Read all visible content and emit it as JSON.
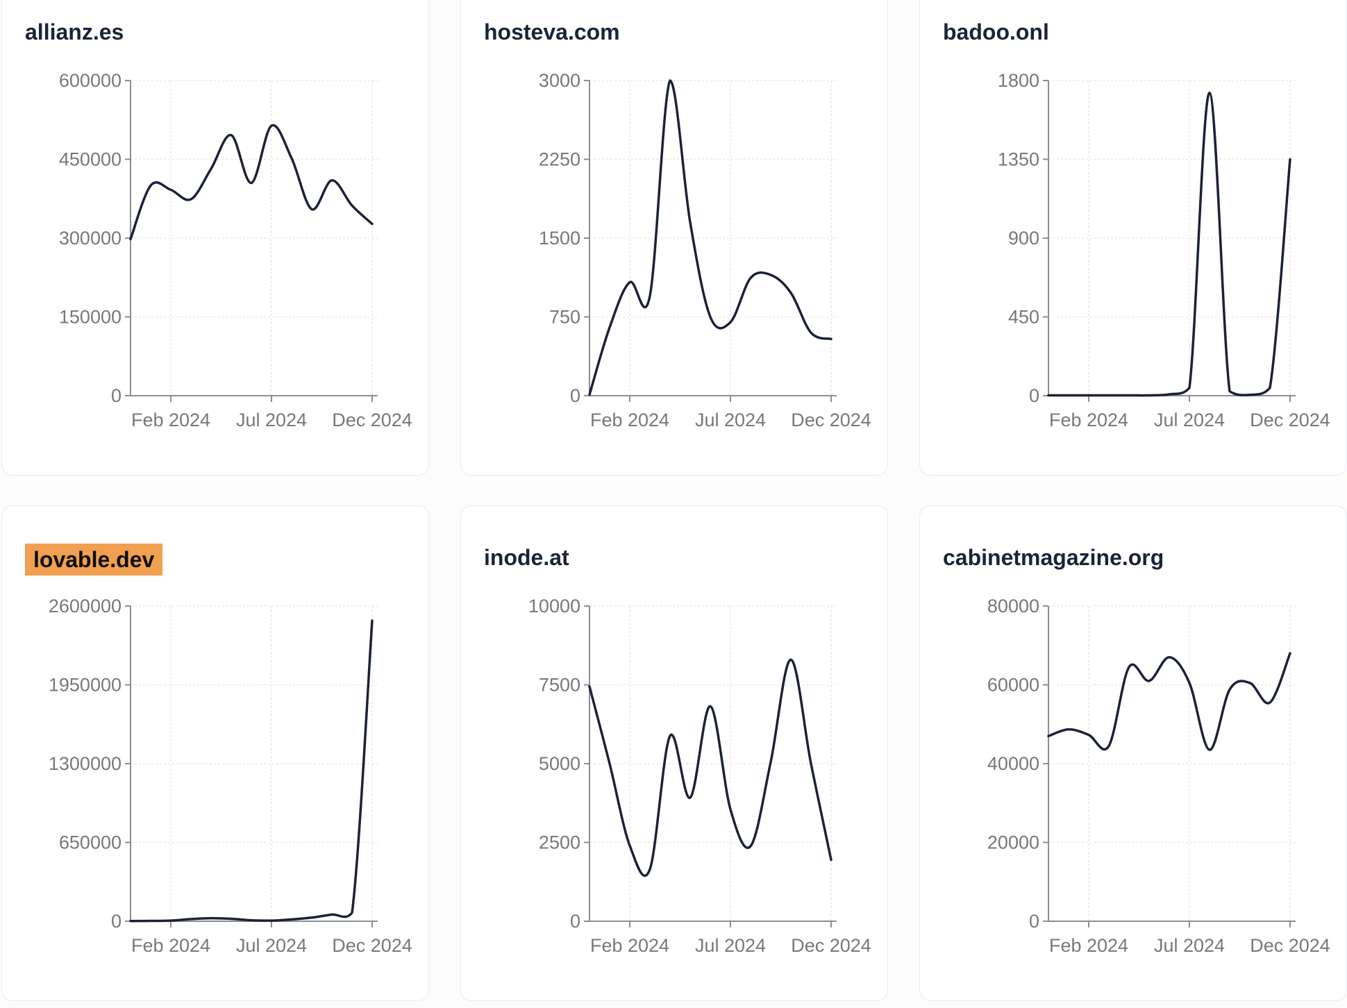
{
  "theme": {
    "page_bg": "#fcfcfd",
    "card_bg": "#ffffff",
    "card_border": "#e6ebf2",
    "line_color": "#1b2138",
    "title_color": "#1a2339",
    "tick_text_color": "#75787d",
    "axis_color": "#8a8e93",
    "grid_color": "#e8e8ea",
    "highlight_bg": "#f0a050",
    "highlight_text": "#0c0c0c"
  },
  "chart_data": [
    {
      "type": "line",
      "title": "allianz.es",
      "title_highlighted": false,
      "x": [
        "2023-12",
        "2024-01",
        "2024-02",
        "2024-03",
        "2024-04",
        "2024-05",
        "2024-06",
        "2024-07",
        "2024-08",
        "2024-09",
        "2024-10",
        "2024-11",
        "2024-12"
      ],
      "x_tick_labels": [
        "Feb 2024",
        "Jul 2024",
        "Dec 2024"
      ],
      "x_tick_indices": [
        2,
        7,
        12
      ],
      "y_ticks": [
        0,
        150000,
        300000,
        450000,
        600000
      ],
      "ylim": [
        0,
        600000
      ],
      "grid": true,
      "legend": "none",
      "values": [
        298000,
        400000,
        392000,
        374000,
        432000,
        496000,
        405000,
        514000,
        452000,
        355000,
        410000,
        362000,
        327000
      ]
    },
    {
      "type": "line",
      "title": "hosteva.com",
      "title_highlighted": false,
      "x": [
        "2023-12",
        "2024-01",
        "2024-02",
        "2024-03",
        "2024-04",
        "2024-05",
        "2024-06",
        "2024-07",
        "2024-08",
        "2024-09",
        "2024-10",
        "2024-11",
        "2024-12"
      ],
      "x_tick_labels": [
        "Feb 2024",
        "Jul 2024",
        "Dec 2024"
      ],
      "x_tick_indices": [
        2,
        7,
        12
      ],
      "y_ticks": [
        0,
        750,
        1500,
        2250,
        3000
      ],
      "ylim": [
        0,
        3000
      ],
      "grid": true,
      "legend": "none",
      "values": [
        10,
        650,
        1080,
        950,
        3000,
        1650,
        750,
        700,
        1120,
        1150,
        980,
        600,
        540
      ]
    },
    {
      "type": "line",
      "title": "badoo.onl",
      "title_highlighted": false,
      "x": [
        "2023-12",
        "2024-01",
        "2024-02",
        "2024-03",
        "2024-04",
        "2024-05",
        "2024-06",
        "2024-07",
        "2024-08",
        "2024-09",
        "2024-10",
        "2024-11",
        "2024-12"
      ],
      "x_tick_labels": [
        "Feb 2024",
        "Jul 2024",
        "Dec 2024"
      ],
      "x_tick_indices": [
        2,
        7,
        12
      ],
      "y_ticks": [
        0,
        450,
        900,
        1350,
        1800
      ],
      "ylim": [
        0,
        1800
      ],
      "grid": true,
      "legend": "none",
      "values": [
        2,
        2,
        2,
        2,
        2,
        2,
        8,
        45,
        1730,
        25,
        5,
        45,
        1350
      ]
    },
    {
      "type": "line",
      "title": "lovable.dev",
      "title_highlighted": true,
      "x": [
        "2023-12",
        "2024-01",
        "2024-02",
        "2024-03",
        "2024-04",
        "2024-05",
        "2024-06",
        "2024-07",
        "2024-08",
        "2024-09",
        "2024-10",
        "2024-11",
        "2024-12"
      ],
      "x_tick_labels": [
        "Feb 2024",
        "Jul 2024",
        "Dec 2024"
      ],
      "x_tick_indices": [
        2,
        7,
        12
      ],
      "y_ticks": [
        0,
        650000,
        1300000,
        1950000,
        2600000
      ],
      "ylim": [
        0,
        2600000
      ],
      "grid": true,
      "legend": "none",
      "values": [
        2000,
        3000,
        5000,
        18000,
        25000,
        20000,
        8000,
        5000,
        15000,
        30000,
        55000,
        70000,
        2480000
      ]
    },
    {
      "type": "line",
      "title": "inode.at",
      "title_highlighted": false,
      "x": [
        "2023-12",
        "2024-01",
        "2024-02",
        "2024-03",
        "2024-04",
        "2024-05",
        "2024-06",
        "2024-07",
        "2024-08",
        "2024-09",
        "2024-10",
        "2024-11",
        "2024-12"
      ],
      "x_tick_labels": [
        "Feb 2024",
        "Jul 2024",
        "Dec 2024"
      ],
      "x_tick_indices": [
        2,
        7,
        12
      ],
      "y_ticks": [
        0,
        2500,
        5000,
        7500,
        10000
      ],
      "ylim": [
        0,
        10000
      ],
      "grid": true,
      "legend": "none",
      "values": [
        7450,
        5000,
        2400,
        1650,
        5880,
        3920,
        6820,
        3550,
        2380,
        5050,
        8300,
        5000,
        1950
      ]
    },
    {
      "type": "line",
      "title": "cabinetmagazine.org",
      "title_highlighted": false,
      "x": [
        "2023-12",
        "2024-01",
        "2024-02",
        "2024-03",
        "2024-04",
        "2024-05",
        "2024-06",
        "2024-07",
        "2024-08",
        "2024-09",
        "2024-10",
        "2024-11",
        "2024-12"
      ],
      "x_tick_labels": [
        "Feb 2024",
        "Jul 2024",
        "Dec 2024"
      ],
      "x_tick_indices": [
        2,
        7,
        12
      ],
      "y_ticks": [
        0,
        20000,
        40000,
        60000,
        80000
      ],
      "ylim": [
        0,
        80000
      ],
      "grid": true,
      "legend": "none",
      "values": [
        47000,
        48700,
        47300,
        44500,
        64500,
        61000,
        67000,
        60500,
        43500,
        58800,
        60500,
        55500,
        68000
      ]
    }
  ]
}
